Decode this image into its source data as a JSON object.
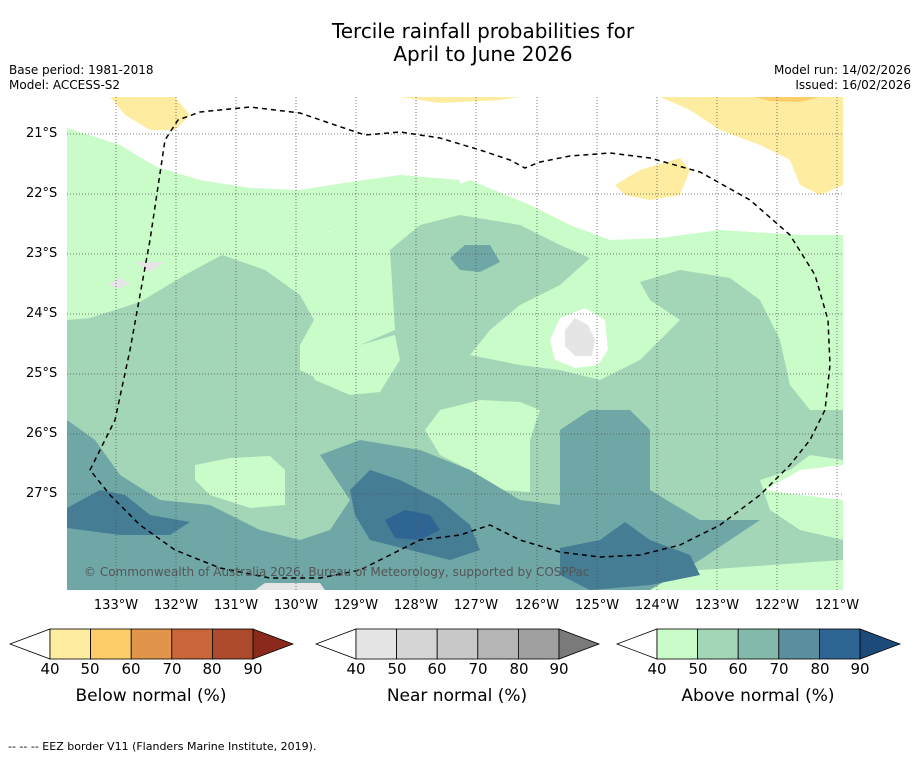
{
  "title": {
    "line1": "Tercile rainfall probabilities for",
    "line2": "April to June 2026"
  },
  "meta": {
    "base_period": "Base period: 1981-2018",
    "model": "Model: ACCESS-S2",
    "model_run": "Model run: 14/02/2026",
    "issued": "Issued: 16/02/2026"
  },
  "map": {
    "lat_labels": [
      "21°S",
      "22°S",
      "23°S",
      "24°S",
      "25°S",
      "26°S",
      "27°S"
    ],
    "lon_labels": [
      "133°W",
      "132°W",
      "131°W",
      "130°W",
      "129°W",
      "128°W",
      "127°W",
      "126°W",
      "125°W",
      "124°W",
      "123°W",
      "122°W",
      "121°W"
    ],
    "copyright": "© Commonwealth of Australia 2026, Bureau of Meteorology, supported by COSPPac"
  },
  "legend": {
    "below": {
      "title": "Below normal (%)",
      "ticks": [
        "40",
        "50",
        "60",
        "70",
        "80",
        "90"
      ],
      "colors": [
        "#ffffff",
        "#feeda0",
        "#fdcd6a",
        "#e0954a",
        "#c9653a",
        "#ad4a2b",
        "#8b2a1a"
      ]
    },
    "near": {
      "title": "Near normal (%)",
      "ticks": [
        "40",
        "50",
        "60",
        "70",
        "80",
        "90"
      ],
      "colors": [
        "#ffffff",
        "#e5e5e5",
        "#d5d5d5",
        "#c8c8c8",
        "#b5b5b5",
        "#a0a0a0",
        "#7a7a7a"
      ]
    },
    "above": {
      "title": "Above normal (%)",
      "ticks": [
        "40",
        "50",
        "60",
        "70",
        "80",
        "90"
      ],
      "colors": [
        "#ffffff",
        "#c9fcc9",
        "#a2d6b6",
        "#83b9aa",
        "#5b8fa0",
        "#2e6592",
        "#1c4b7a"
      ]
    }
  },
  "footnote": "-- -- -- EEZ border V11 (Flanders Marine Institute, 2019)."
}
